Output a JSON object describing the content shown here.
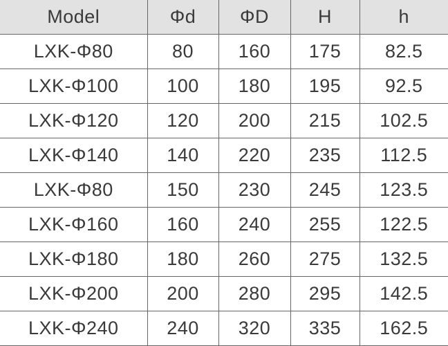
{
  "table": {
    "header": [
      "Model",
      "Φd",
      "ΦD",
      "H",
      "h"
    ],
    "rows": [
      [
        "LXK-Φ80",
        80,
        160,
        175,
        82.5
      ],
      [
        "LXK-Φ100",
        100,
        180,
        195,
        92.5
      ],
      [
        "LXK-Φ120",
        120,
        200,
        215,
        102.5
      ],
      [
        "LXK-Φ140",
        140,
        220,
        235,
        112.5
      ],
      [
        "LXK-Φ80",
        150,
        230,
        245,
        123.5
      ],
      [
        "LXK-Φ160",
        160,
        240,
        255,
        122.5
      ],
      [
        "LXK-Φ180",
        180,
        260,
        275,
        132.5
      ],
      [
        "LXK-Φ200",
        200,
        280,
        295,
        142.5
      ],
      [
        "LXK-Φ240",
        240,
        320,
        335,
        162.5
      ]
    ]
  }
}
